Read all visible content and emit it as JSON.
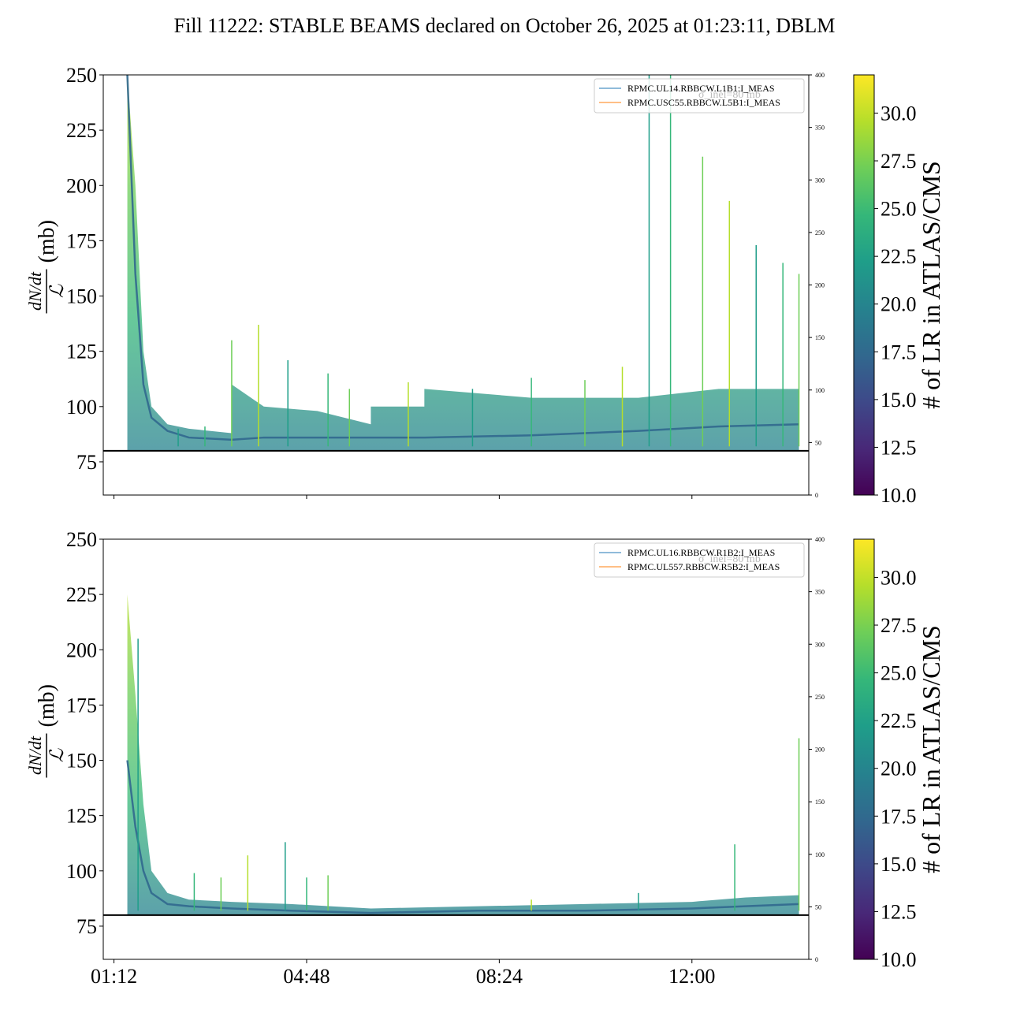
{
  "title": "Fill 11222: STABLE BEAMS declared on October 26, 2025 at 01:23:11, DBLM",
  "colors": {
    "viridis": [
      "#440154",
      "#482878",
      "#3e4989",
      "#31688e",
      "#26828e",
      "#1f9e89",
      "#35b779",
      "#6ece58",
      "#b5de2b",
      "#fde725"
    ],
    "legend_line_1": "#1f77b4",
    "legend_line_2": "#ff7f0e",
    "axis": "#000000",
    "reference_line": "#000000"
  },
  "chart_data": [
    {
      "type": "line",
      "panel": "top",
      "ylabel_fraction": "dN/dt / ℒ",
      "ylabel_unit": "(mb)",
      "ylim": [
        60,
        250
      ],
      "yticks": [
        75,
        100,
        125,
        150,
        175,
        200,
        225,
        250
      ],
      "xlim": [
        "01:00",
        "14:11"
      ],
      "xticks": [
        "01:12",
        "04:48",
        "08:24",
        "12:00"
      ],
      "show_x_tick_labels": false,
      "reference_line_y": 80,
      "secondary_ylim": [
        0,
        400
      ],
      "secondary_yticks": [
        0,
        50,
        100,
        150,
        200,
        250,
        300,
        350,
        400
      ],
      "legend": [
        "RPMC.UL14.RBBCW.L1B1:I_MEAS",
        "RPMC.USC55.RBBCW.L5B1:I_MEAS"
      ],
      "legend_overlay": "σ_inel=80 mb",
      "colorbar": {
        "label": "# of LR in ATLAS/CMS",
        "range": [
          10.0,
          32.0
        ],
        "ticks": [
          "10.0",
          "12.5",
          "15.0",
          "17.5",
          "20.0",
          "22.5",
          "25.0",
          "27.5",
          "30.0"
        ]
      },
      "baseline": [
        [
          1.45,
          250
        ],
        [
          1.6,
          160
        ],
        [
          1.75,
          110
        ],
        [
          1.9,
          95
        ],
        [
          2.2,
          89
        ],
        [
          2.6,
          86
        ],
        [
          3.4,
          85
        ],
        [
          4.0,
          86
        ],
        [
          5.6,
          86
        ],
        [
          7.0,
          86
        ],
        [
          9.0,
          87
        ],
        [
          11.0,
          89
        ],
        [
          12.5,
          91
        ],
        [
          14.0,
          92
        ]
      ],
      "band_upper": [
        [
          1.45,
          250
        ],
        [
          1.6,
          200
        ],
        [
          1.75,
          125
        ],
        [
          1.9,
          100
        ],
        [
          2.2,
          92
        ],
        [
          2.6,
          90
        ],
        [
          3.4,
          88
        ],
        [
          3.4,
          110
        ],
        [
          4.0,
          100
        ],
        [
          5.0,
          98
        ],
        [
          6.0,
          92
        ],
        [
          6.0,
          100
        ],
        [
          7.0,
          100
        ],
        [
          7.0,
          108
        ],
        [
          9.0,
          104
        ],
        [
          11.0,
          104
        ],
        [
          12.5,
          108
        ],
        [
          14.0,
          108
        ]
      ],
      "spikes": [
        [
          2.4,
          90
        ],
        [
          2.9,
          91
        ],
        [
          3.4,
          130
        ],
        [
          3.9,
          137
        ],
        [
          4.45,
          121
        ],
        [
          5.2,
          115
        ],
        [
          5.6,
          108
        ],
        [
          6.7,
          111
        ],
        [
          7.9,
          108
        ],
        [
          9.0,
          113
        ],
        [
          10.0,
          112
        ],
        [
          10.7,
          118
        ],
        [
          11.2,
          253
        ],
        [
          11.6,
          253
        ],
        [
          12.2,
          213
        ],
        [
          12.7,
          193
        ],
        [
          13.2,
          173
        ],
        [
          13.7,
          165
        ],
        [
          14.0,
          160
        ]
      ]
    },
    {
      "type": "line",
      "panel": "bottom",
      "ylabel_fraction": "dN/dt / ℒ",
      "ylabel_unit": "(mb)",
      "ylim": [
        60,
        250
      ],
      "yticks": [
        75,
        100,
        125,
        150,
        175,
        200,
        225,
        250
      ],
      "xlim": [
        "01:00",
        "14:11"
      ],
      "xticks": [
        "01:12",
        "04:48",
        "08:24",
        "12:00"
      ],
      "show_x_tick_labels": true,
      "reference_line_y": 80,
      "secondary_ylim": [
        0,
        400
      ],
      "secondary_yticks": [
        0,
        50,
        100,
        150,
        200,
        250,
        300,
        350,
        400
      ],
      "legend": [
        "RPMC.UL16.RBBCW.R1B2:I_MEAS",
        "RPMC.UL557.RBBCW.R5B2:I_MEAS"
      ],
      "legend_overlay": "σ_inel=80 mb",
      "colorbar": {
        "label": "# of LR in ATLAS/CMS",
        "range": [
          10.0,
          32.0
        ],
        "ticks": [
          "10.0",
          "12.5",
          "15.0",
          "17.5",
          "20.0",
          "22.5",
          "25.0",
          "27.5",
          "30.0"
        ]
      },
      "baseline": [
        [
          1.45,
          150
        ],
        [
          1.6,
          120
        ],
        [
          1.75,
          100
        ],
        [
          1.9,
          90
        ],
        [
          2.2,
          85
        ],
        [
          2.6,
          84
        ],
        [
          3.4,
          83
        ],
        [
          4.5,
          82
        ],
        [
          6.0,
          81
        ],
        [
          8.0,
          82
        ],
        [
          10.0,
          82
        ],
        [
          12.0,
          83
        ],
        [
          13.0,
          84
        ],
        [
          14.0,
          85
        ]
      ],
      "band_upper": [
        [
          1.45,
          225
        ],
        [
          1.6,
          180
        ],
        [
          1.75,
          130
        ],
        [
          1.9,
          100
        ],
        [
          2.2,
          90
        ],
        [
          2.6,
          87
        ],
        [
          3.4,
          86
        ],
        [
          4.5,
          85
        ],
        [
          6.0,
          83
        ],
        [
          8.0,
          84
        ],
        [
          10.0,
          85
        ],
        [
          12.0,
          86
        ],
        [
          13.0,
          88
        ],
        [
          14.0,
          89
        ]
      ],
      "spikes": [
        [
          1.65,
          205
        ],
        [
          2.7,
          99
        ],
        [
          3.2,
          97
        ],
        [
          3.7,
          107
        ],
        [
          4.4,
          113
        ],
        [
          4.8,
          97
        ],
        [
          5.2,
          98
        ],
        [
          9.0,
          87
        ],
        [
          11.0,
          90
        ],
        [
          12.8,
          112
        ],
        [
          14.0,
          160
        ]
      ]
    }
  ]
}
